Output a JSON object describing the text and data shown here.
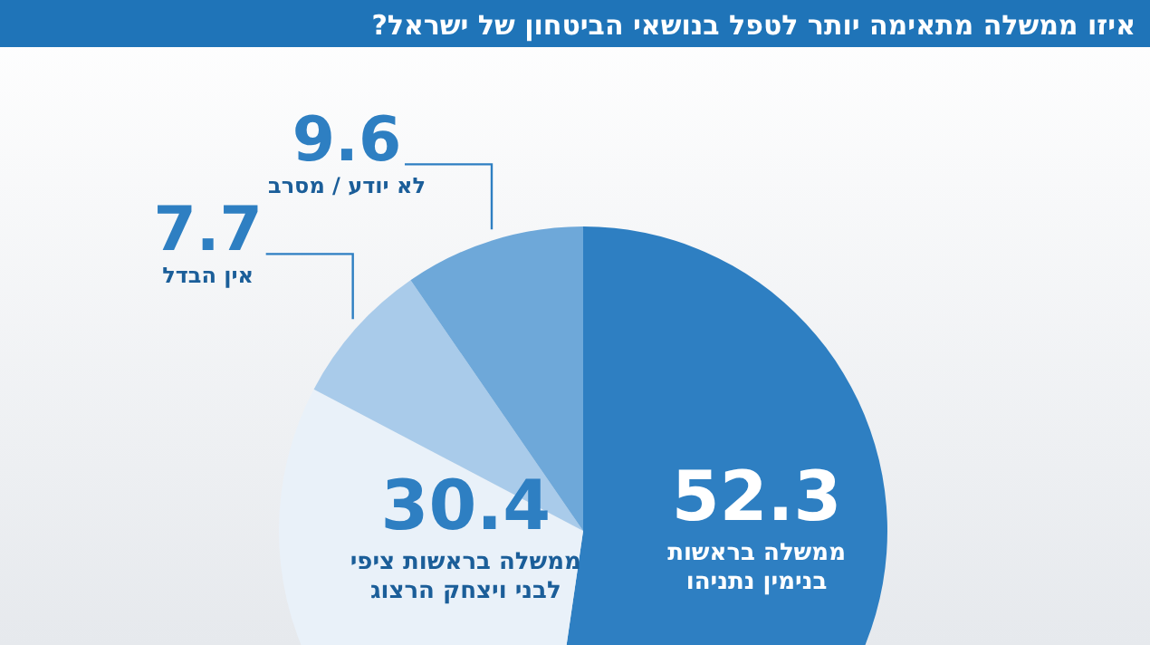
{
  "chart_data": {
    "type": "pie",
    "title": "איזו ממשלה מתאימה יותר לטפל בנושאי הביטחון של ישראל?",
    "categories": [
      "ממשלה בראשות בנימין נתניהו",
      "ממשלה בראשות ציפי לבני ויצחק הרצוג",
      "אין הבדל",
      "לא יודע / מסרב"
    ],
    "values": [
      52.3,
      30.4,
      7.7,
      9.6
    ],
    "colors": [
      "#2e7fc2",
      "#e9f1f9",
      "#a9cbea",
      "#6ea8d9"
    ],
    "data_labels": true
  }
}
